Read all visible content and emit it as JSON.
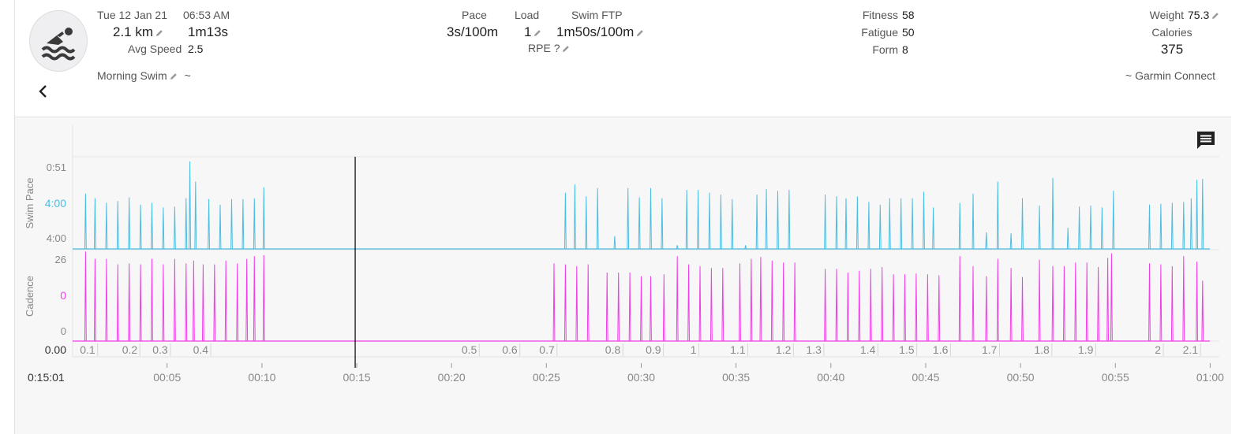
{
  "activity": {
    "date": "Tue 12 Jan 21",
    "time": "06:53 AM",
    "distance": "2.1 km",
    "duration": "1m13s",
    "avg_speed_label": "Avg Speed",
    "avg_speed": "2.5",
    "name": "Morning Swim",
    "name_suffix": "~",
    "source": "~ Garmin Connect"
  },
  "metrics": {
    "pace_label": "Pace",
    "pace": "3s/100m",
    "load_label": "Load",
    "load": "1",
    "swim_ftp_label": "Swim FTP",
    "swim_ftp": "1m50s/100m",
    "rpe_label": "RPE",
    "rpe": "?"
  },
  "fitness": {
    "fitness_label": "Fitness",
    "fitness": "58",
    "fatigue_label": "Fatigue",
    "fatigue": "50",
    "form_label": "Form",
    "form": "8"
  },
  "body": {
    "weight_label": "Weight",
    "weight": "75.3",
    "calories_label": "Calories",
    "calories": "375"
  },
  "icons": {
    "avatar": "swimmer-icon",
    "back": "chevron-left-icon",
    "edit": "pencil-icon",
    "comments": "comment-icon"
  },
  "chart_data": {
    "type": "line",
    "x_unit": "elapsed time",
    "x_ticks": [
      "00:05",
      "00:10",
      "00:15",
      "00:20",
      "00:25",
      "00:30",
      "00:35",
      "00:40",
      "00:45",
      "00:50",
      "00:55",
      "01:00"
    ],
    "xlim": [
      0,
      60
    ],
    "cursor": {
      "x": 15,
      "label": "0:15:01"
    },
    "colors": {
      "swim_pace": "#4bbde0",
      "cadence": "#f03ee8"
    },
    "series": [
      {
        "name": "Swim Pace",
        "y_ticks": [
          "0:51",
          "4:00",
          "4:00"
        ],
        "highlight_tick": 1,
        "spikes": [
          [
            0.7,
            0.6
          ],
          [
            1.2,
            0.55
          ],
          [
            1.8,
            0.5
          ],
          [
            2.4,
            0.52
          ],
          [
            3.0,
            0.56
          ],
          [
            3.6,
            0.48
          ],
          [
            4.2,
            0.5
          ],
          [
            4.8,
            0.45
          ],
          [
            5.4,
            0.46
          ],
          [
            6.0,
            0.55
          ],
          [
            6.2,
            0.95
          ],
          [
            6.5,
            0.73
          ],
          [
            7.2,
            0.54
          ],
          [
            7.8,
            0.48
          ],
          [
            8.4,
            0.54
          ],
          [
            9.0,
            0.54
          ],
          [
            9.6,
            0.55
          ],
          [
            10.1,
            0.67
          ],
          [
            26.0,
            0.61
          ],
          [
            26.5,
            0.7
          ],
          [
            27.1,
            0.57
          ],
          [
            27.7,
            0.66
          ],
          [
            28.6,
            0.14
          ],
          [
            29.3,
            0.66
          ],
          [
            29.9,
            0.56
          ],
          [
            30.5,
            0.66
          ],
          [
            31.1,
            0.55
          ],
          [
            31.9,
            0.04
          ],
          [
            32.4,
            0.64
          ],
          [
            33.0,
            0.64
          ],
          [
            33.6,
            0.61
          ],
          [
            34.2,
            0.59
          ],
          [
            34.8,
            0.54
          ],
          [
            35.5,
            0.04
          ],
          [
            36.1,
            0.59
          ],
          [
            36.6,
            0.65
          ],
          [
            37.2,
            0.63
          ],
          [
            37.8,
            0.64
          ],
          [
            39.7,
            0.59
          ],
          [
            40.3,
            0.57
          ],
          [
            40.8,
            0.55
          ],
          [
            41.4,
            0.57
          ],
          [
            42.0,
            0.51
          ],
          [
            42.6,
            0.48
          ],
          [
            43.1,
            0.55
          ],
          [
            43.7,
            0.55
          ],
          [
            44.3,
            0.55
          ],
          [
            44.9,
            0.62
          ],
          [
            45.4,
            0.45
          ],
          [
            46.8,
            0.5
          ],
          [
            47.5,
            0.6
          ],
          [
            48.2,
            0.18
          ],
          [
            48.8,
            0.73
          ],
          [
            49.5,
            0.17
          ],
          [
            50.1,
            0.55
          ],
          [
            51.0,
            0.47
          ],
          [
            51.7,
            0.77
          ],
          [
            52.5,
            0.23
          ],
          [
            53.1,
            0.46
          ],
          [
            53.7,
            0.47
          ],
          [
            54.3,
            0.45
          ],
          [
            54.9,
            0.63
          ],
          [
            56.8,
            0.48
          ],
          [
            57.4,
            0.49
          ],
          [
            58.0,
            0.5
          ],
          [
            58.6,
            0.51
          ],
          [
            59.0,
            0.55
          ],
          [
            59.3,
            0.75
          ],
          [
            59.6,
            0.76
          ]
        ]
      },
      {
        "name": "Cadence",
        "y_ticks": [
          "26",
          "0",
          "0"
        ],
        "highlight_tick": 1,
        "spikes": [
          [
            0.7,
            0.98
          ],
          [
            1.2,
            0.9
          ],
          [
            1.8,
            0.9
          ],
          [
            2.4,
            0.84
          ],
          [
            3.0,
            0.85
          ],
          [
            3.6,
            0.84
          ],
          [
            4.2,
            0.9
          ],
          [
            4.8,
            0.84
          ],
          [
            5.4,
            0.9
          ],
          [
            6.0,
            0.85
          ],
          [
            6.4,
            0.88
          ],
          [
            6.9,
            0.84
          ],
          [
            7.5,
            0.84
          ],
          [
            8.1,
            0.88
          ],
          [
            8.7,
            0.85
          ],
          [
            9.2,
            0.9
          ],
          [
            9.6,
            0.93
          ],
          [
            10.1,
            0.94
          ],
          [
            25.4,
            0.85
          ],
          [
            26.0,
            0.84
          ],
          [
            26.6,
            0.82
          ],
          [
            27.2,
            0.84
          ],
          [
            28.2,
            0.75
          ],
          [
            28.8,
            0.75
          ],
          [
            29.4,
            0.75
          ],
          [
            30.0,
            0.71
          ],
          [
            30.5,
            0.71
          ],
          [
            31.2,
            0.73
          ],
          [
            31.9,
            0.93
          ],
          [
            32.5,
            0.84
          ],
          [
            33.1,
            0.82
          ],
          [
            33.7,
            0.8
          ],
          [
            34.3,
            0.8
          ],
          [
            35.2,
            0.85
          ],
          [
            35.8,
            0.9
          ],
          [
            36.3,
            0.92
          ],
          [
            36.9,
            0.88
          ],
          [
            37.5,
            0.86
          ],
          [
            38.1,
            0.86
          ],
          [
            39.7,
            0.79
          ],
          [
            40.3,
            0.79
          ],
          [
            40.9,
            0.75
          ],
          [
            41.5,
            0.77
          ],
          [
            42.1,
            0.79
          ],
          [
            42.7,
            0.81
          ],
          [
            43.3,
            0.73
          ],
          [
            43.9,
            0.73
          ],
          [
            44.5,
            0.74
          ],
          [
            45.1,
            0.73
          ],
          [
            45.7,
            0.72
          ],
          [
            46.8,
            0.93
          ],
          [
            47.5,
            0.82
          ],
          [
            48.2,
            0.71
          ],
          [
            48.8,
            0.9
          ],
          [
            49.5,
            0.8
          ],
          [
            50.1,
            0.7
          ],
          [
            51.0,
            0.89
          ],
          [
            51.7,
            0.82
          ],
          [
            52.3,
            0.82
          ],
          [
            52.9,
            0.86
          ],
          [
            53.5,
            0.86
          ],
          [
            54.1,
            0.81
          ],
          [
            54.6,
            0.91
          ],
          [
            54.8,
            0.96
          ],
          [
            56.8,
            0.85
          ],
          [
            57.4,
            0.84
          ],
          [
            58.0,
            0.82
          ],
          [
            58.6,
            0.93
          ],
          [
            59.3,
            0.87
          ],
          [
            59.6,
            0.66
          ]
        ]
      }
    ],
    "distance_markers": [
      {
        "label": "0.1",
        "x": 1.5
      },
      {
        "label": "0.2",
        "x": 4.0
      },
      {
        "label": "0.3",
        "x": 5.8
      },
      {
        "label": "0.4",
        "x": 8.2
      },
      {
        "label": "0.5",
        "x": 24.1
      },
      {
        "label": "0.6",
        "x": 26.5
      },
      {
        "label": "0.7",
        "x": 28.7
      },
      {
        "label": "0.8",
        "x": 32.6
      },
      {
        "label": "0.9",
        "x": 35.0
      },
      {
        "label": "1",
        "x": 37.1
      },
      {
        "label": "1.1",
        "x": 40.0
      },
      {
        "label": "1.2",
        "x": 42.7
      },
      {
        "label": "1.3",
        "x": 44.5
      },
      {
        "label": "1.4",
        "x": 47.7
      },
      {
        "label": "1.5",
        "x": 50.0
      },
      {
        "label": "1.6",
        "x": 52.0
      },
      {
        "label": "1.7",
        "x": 54.9
      },
      {
        "label": "1.8",
        "x": 58.0
      },
      {
        "label": "1.9",
        "x": 60.6
      },
      {
        "label": "2",
        "x": 64.6
      },
      {
        "label": "2.1",
        "x": 66.8
      }
    ],
    "distance_start_label": "0.00"
  }
}
